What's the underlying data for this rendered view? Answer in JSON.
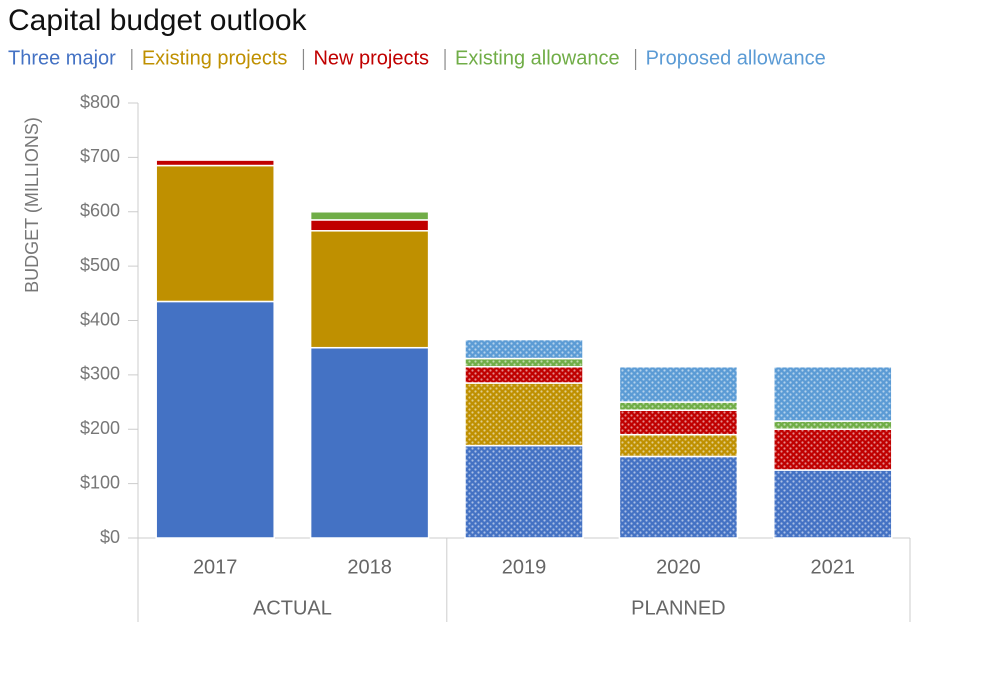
{
  "chart_data": {
    "type": "stacked-bar",
    "title": "Capital budget outlook",
    "y_label": "BUDGET (MILLIONS)",
    "categories": [
      "2017",
      "2018",
      "2019",
      "2020",
      "2021"
    ],
    "groups": [
      {
        "label": "ACTUAL",
        "count": 2,
        "pattern": false
      },
      {
        "label": "PLANNED",
        "count": 3,
        "pattern": true
      }
    ],
    "series": [
      {
        "name": "Three major",
        "color": "#4472c4",
        "values": [
          435,
          350,
          170,
          150,
          125
        ]
      },
      {
        "name": "Existing projects",
        "color": "#bf9000",
        "values": [
          250,
          215,
          115,
          40,
          0
        ]
      },
      {
        "name": "New projects",
        "color": "#c00000",
        "values": [
          10,
          20,
          30,
          45,
          75
        ]
      },
      {
        "name": "Existing allowance",
        "color": "#70ad47",
        "values": [
          0,
          15,
          15,
          15,
          15
        ]
      },
      {
        "name": "Proposed allowance",
        "color": "#5b9bd5",
        "values": [
          0,
          0,
          35,
          65,
          100
        ]
      }
    ],
    "ylim": [
      0,
      800
    ],
    "yticks": [
      {
        "value": 0,
        "label": "$0"
      },
      {
        "value": 100,
        "label": "$100"
      },
      {
        "value": 200,
        "label": "$200"
      },
      {
        "value": 300,
        "label": "$300"
      },
      {
        "value": 400,
        "label": "$400"
      },
      {
        "value": 500,
        "label": "$500"
      },
      {
        "value": 600,
        "label": "$600"
      },
      {
        "value": 700,
        "label": "$700"
      },
      {
        "value": 800,
        "label": "$800"
      }
    ]
  }
}
